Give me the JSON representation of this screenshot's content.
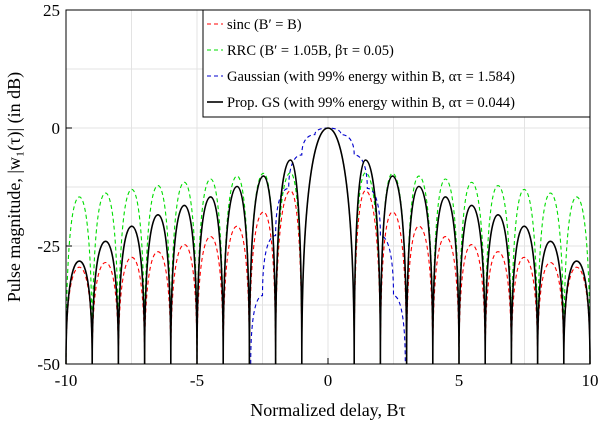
{
  "chart_data": {
    "type": "line",
    "xlabel": "Normalized delay, Bτ",
    "ylabel": "Pulse magnitude, |w₁(τ)| (in dB)",
    "xlim": [
      -10,
      10
    ],
    "ylim": [
      -50,
      25
    ],
    "x_ticks": [
      "-10",
      "-5",
      "0",
      "5",
      "10"
    ],
    "x_tick_values": [
      -10,
      -5,
      0,
      5,
      10
    ],
    "y_ticks": [
      "25",
      "0",
      "-25",
      "-50"
    ],
    "y_tick_values": [
      25,
      0,
      -25,
      -50
    ],
    "grid": true,
    "legend_position": "top-right",
    "series": [
      {
        "name": "sinc (B′ = B)",
        "color": "#ff0000",
        "dash": "dashed",
        "x": [
          0,
          1,
          1.43,
          2,
          2.46,
          3,
          3.47,
          4,
          4.48,
          5,
          5.48,
          6,
          6.49,
          7,
          7.49,
          8,
          8.49,
          9,
          9.49,
          10
        ],
        "y": [
          0,
          -50,
          -13.3,
          -50,
          -17.8,
          -50,
          -20.8,
          -50,
          -23.0,
          -50,
          -24.7,
          -50,
          -26.2,
          -50,
          -27.4,
          -50,
          -28.5,
          -50,
          -29.5,
          -50
        ]
      },
      {
        "name": "RRC (B′ = 1.05B, βτ = 0.05)",
        "color": "#00dd00",
        "dash": "dashed",
        "x": [
          0,
          1,
          1.43,
          2,
          2.46,
          3,
          3.47,
          4,
          4.48,
          5,
          5.48,
          6,
          6.49,
          7,
          7.49,
          8,
          8.49,
          9,
          9.49,
          10
        ],
        "y": [
          0,
          -50,
          -9.5,
          -50,
          -9.6,
          -50,
          -10.2,
          -50,
          -10.8,
          -50,
          -11.5,
          -50,
          -12.2,
          -50,
          -13.0,
          -50,
          -13.8,
          -50,
          -14.6,
          -50
        ]
      },
      {
        "name": "Gaussian (with 99% energy within B, ατ = 1.584)",
        "color": "#0000cc",
        "dash": "dashed",
        "x": [
          -2.95,
          -2.5,
          -2,
          -1.5,
          -1,
          -0.5,
          0,
          0.5,
          1,
          1.5,
          2,
          2.5,
          2.95
        ],
        "y": [
          -50,
          -35.5,
          -22.8,
          -12.8,
          -5.7,
          -1.4,
          0,
          -1.4,
          -5.7,
          -12.8,
          -22.8,
          -35.5,
          -50
        ]
      },
      {
        "name": "Prop. GS (with 99% energy within B, ατ = 0.044)",
        "color": "#000000",
        "dash": "solid",
        "x": [
          0,
          1,
          1.43,
          2,
          2.46,
          3,
          3.47,
          4,
          4.48,
          5,
          5.48,
          6,
          6.49,
          7,
          7.49,
          8,
          8.49,
          9,
          9.49,
          10
        ],
        "y": [
          0,
          -50,
          -6.8,
          -50,
          -10.2,
          -50,
          -12.4,
          -50,
          -14.6,
          -50,
          -16.4,
          -50,
          -18.4,
          -50,
          -20.8,
          -50,
          -24.0,
          -50,
          -28.2,
          -50
        ]
      }
    ]
  }
}
